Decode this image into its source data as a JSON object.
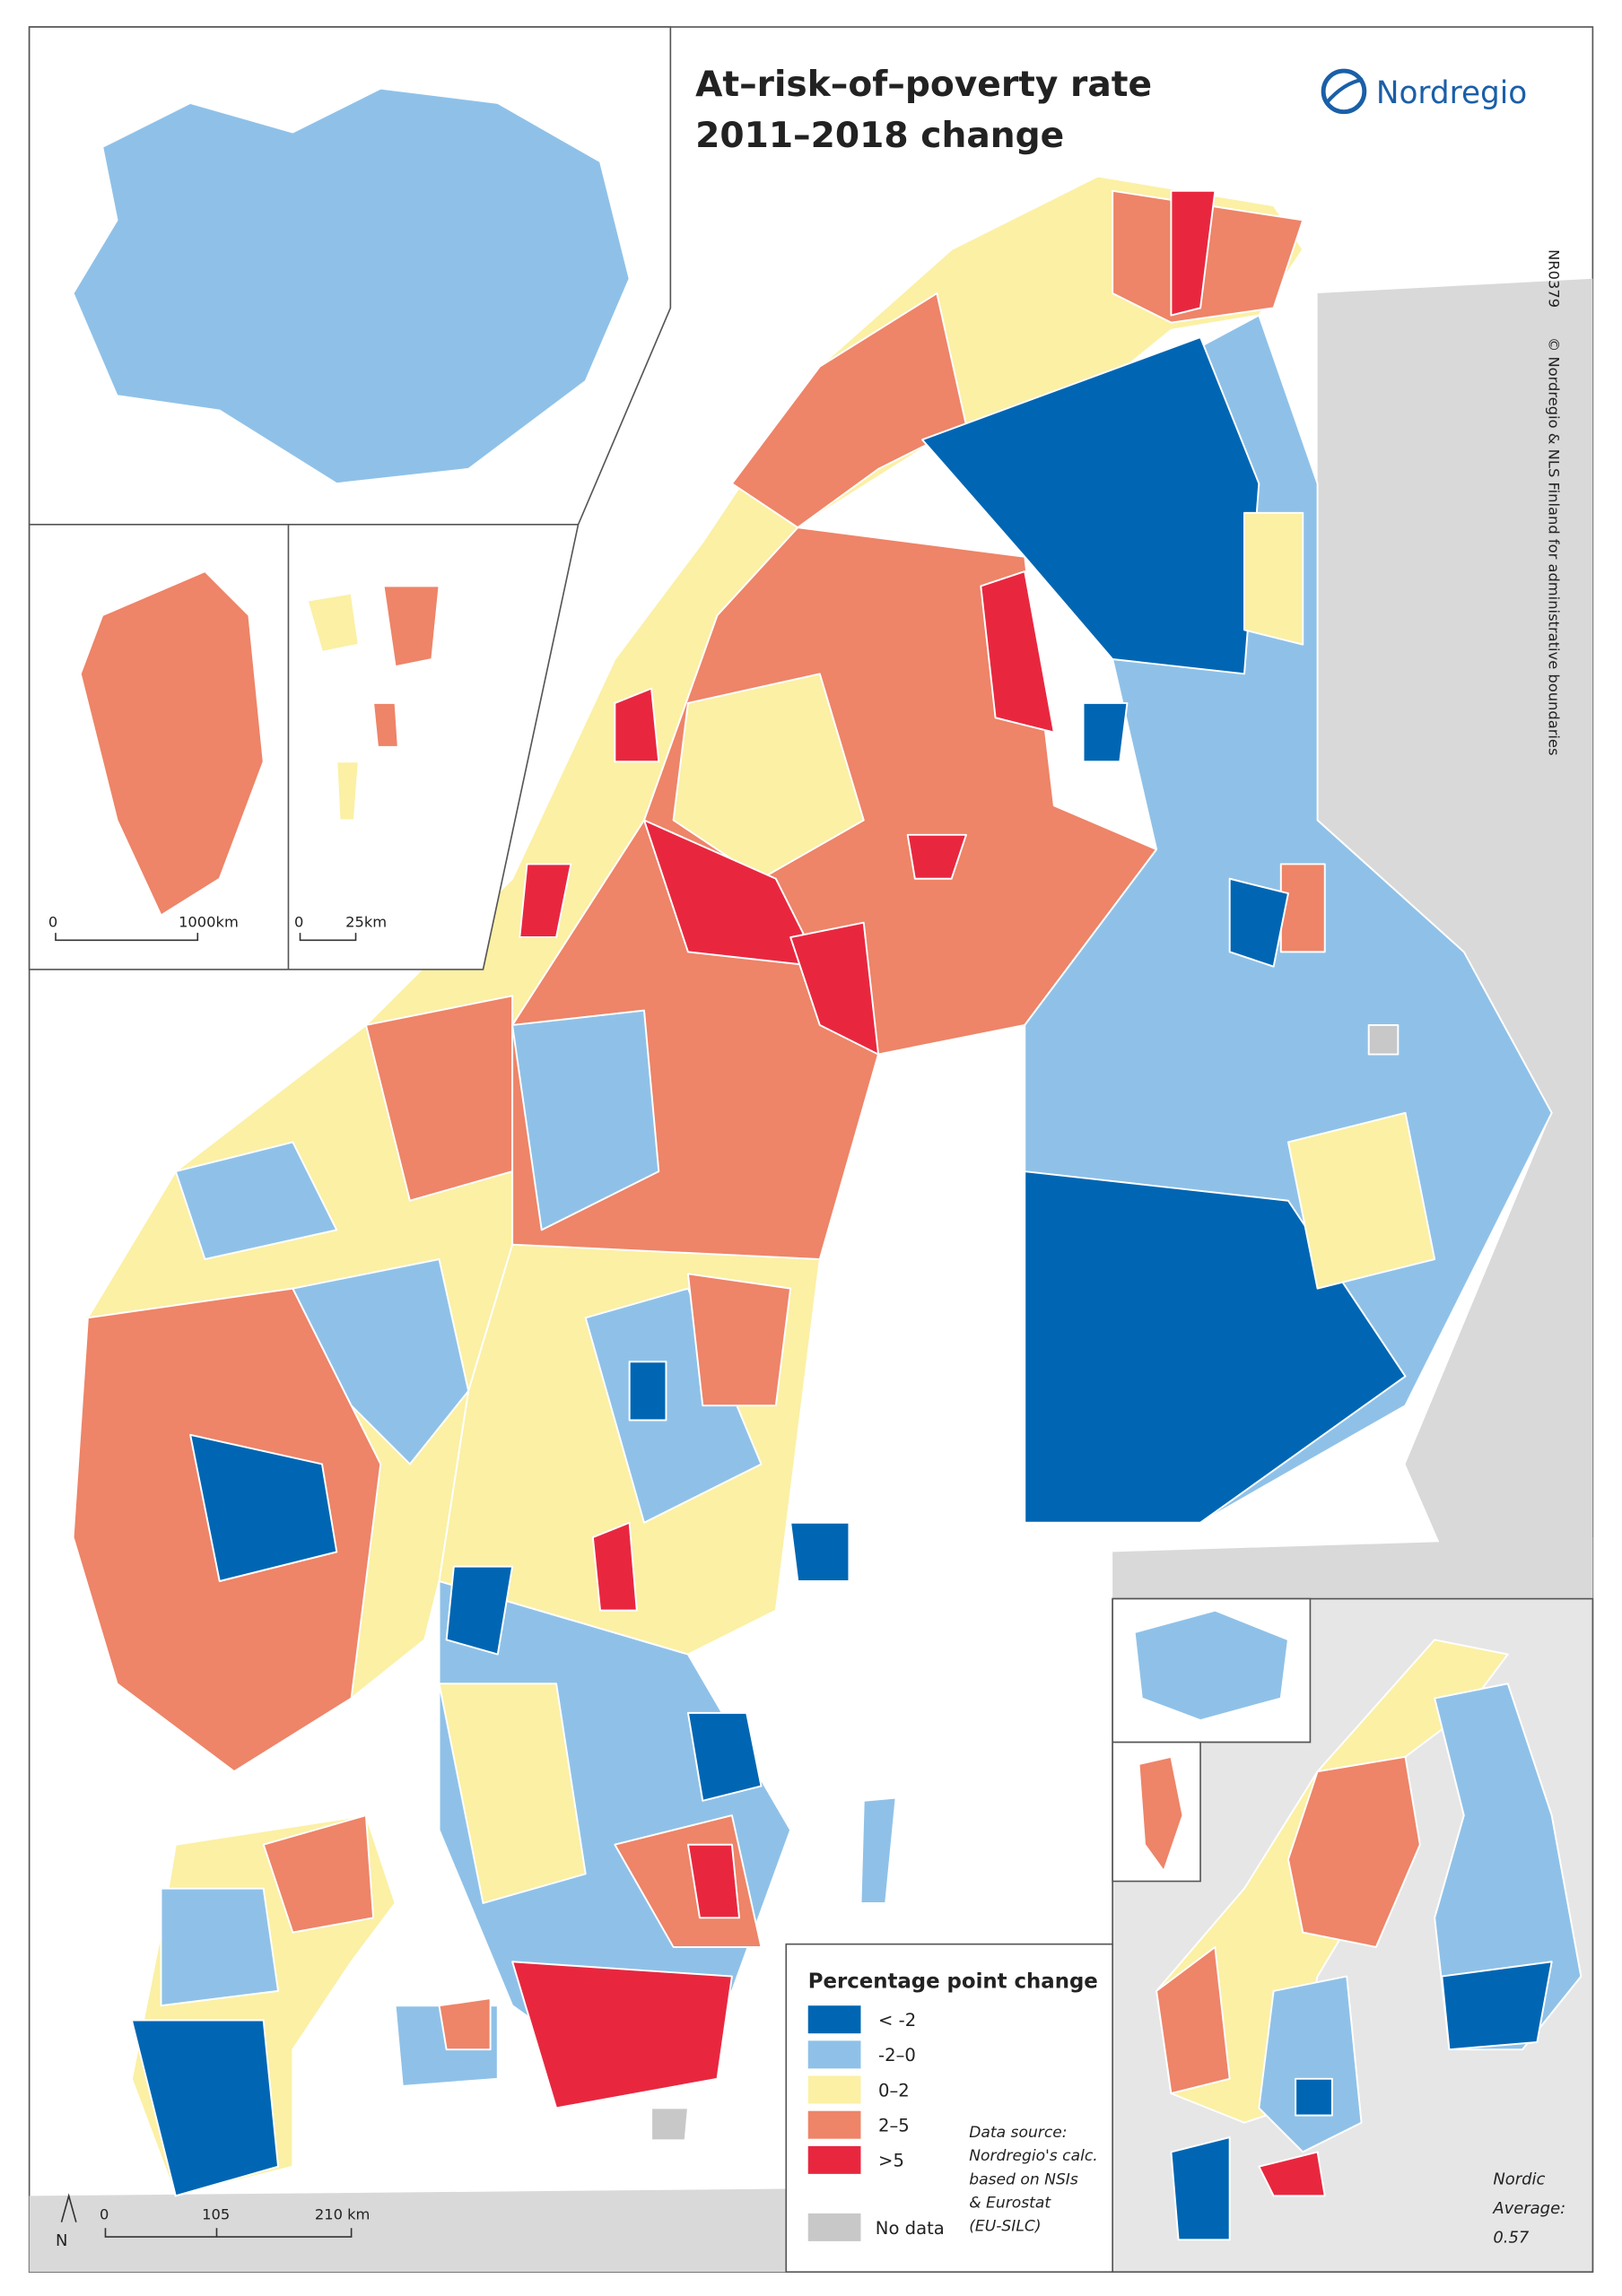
{
  "header": {
    "title_lines": [
      "At–risk–of–poverty rate",
      "2011–2018 change"
    ],
    "logo": "Nordregio"
  },
  "side_notes": [
    "NR0379",
    "© Nordregio & NLS Finland for administrative boundaries"
  ],
  "legend": {
    "title": "Percentage point change",
    "items": [
      {
        "label": "< -2",
        "color": "#0066b3"
      },
      {
        "label": "-2–0",
        "color": "#8fc1e8"
      },
      {
        "label": "0–2",
        "color": "#fbf0a4"
      },
      {
        "label": "2–5",
        "color": "#ee8468"
      },
      {
        "label": ">5",
        "color": "#e8273f"
      },
      {
        "label": "No data",
        "color": "#c8c8c8"
      }
    ]
  },
  "source": [
    "Data source:",
    "Nordregio's calc.",
    "based on NSIs",
    "& Eurostat",
    "(EU-SILC)"
  ],
  "average": [
    "Nordic",
    "Average:",
    "0.57"
  ],
  "scale_bars": {
    "greenland": [
      "0",
      "1000km"
    ],
    "svalbard": [
      "0",
      "25km"
    ],
    "main": [
      "0",
      "105",
      "210 km"
    ]
  },
  "north": "N"
}
